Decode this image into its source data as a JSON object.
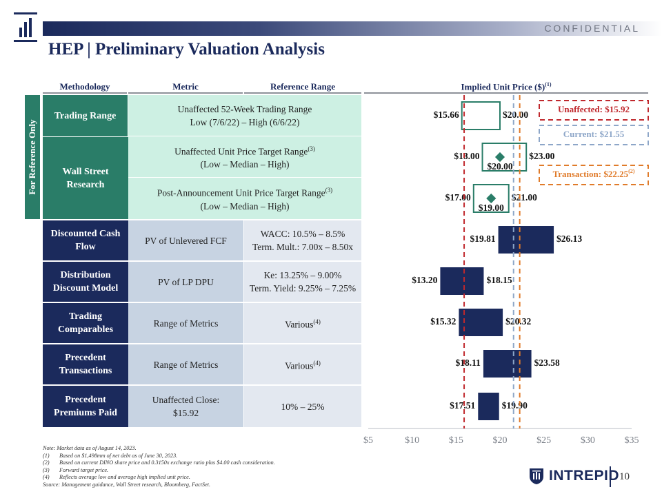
{
  "header": {
    "confidential": "CONFIDENTIAL",
    "title": "HEP | Preliminary Valuation Analysis",
    "page_number": "10"
  },
  "columns": {
    "methodology": "Methodology",
    "metric": "Metric",
    "reference_range": "Reference Range",
    "implied_price": "Implied Unit Price ($)",
    "implied_price_sup": "(1)"
  },
  "side_label": "For Reference Only",
  "rows": [
    {
      "methodology": "Trading Range",
      "metric_line1": "Unaffected 52-Week Trading Range",
      "metric_line2": "Low (7/6/22) – High (6/6/22)"
    },
    {
      "methodology": "Wall Street Research",
      "metric_line1": "Unaffected Unit Price Target Range",
      "metric_sup": "(3)",
      "metric_line2": "(Low – Median – High)"
    },
    {
      "metric_line1": "Post-Announcement Unit Price Target Range",
      "metric_sup": "(3)",
      "metric_line2": "(Low – Median – High)"
    },
    {
      "methodology": "Discounted Cash Flow",
      "metric": "PV of Unlevered FCF",
      "ref_line1": "WACC: 10.5% – 8.5%",
      "ref_line2": "Term. Mult.: 7.00x – 8.50x"
    },
    {
      "methodology": "Distribution Discount Model",
      "metric": "PV of LP DPU",
      "ref_line1": "Ke: 13.25% – 9.00%",
      "ref_line2": "Term. Yield: 9.25% – 7.25%"
    },
    {
      "methodology": "Trading Comparables",
      "metric": "Range of Metrics",
      "ref": "Various",
      "ref_sup": "(4)"
    },
    {
      "methodology": "Precedent Transactions",
      "metric": "Range of Metrics",
      "ref": "Various",
      "ref_sup": "(4)"
    },
    {
      "methodology": "Precedent Premiums Paid",
      "metric_line1": "Unaffected Close:",
      "metric_line2": "$15.92",
      "ref": "10% – 25%"
    }
  ],
  "legend": {
    "unaffected": "Unaffected: $15.92",
    "current": "Current: $21.55",
    "transaction": "Transaction: $22.25",
    "transaction_sup": "(2)"
  },
  "colors": {
    "navy": "#1b2a5c",
    "green": "#2a7d68",
    "unaffected_line": "#c0282d",
    "current_line": "#8da6c8",
    "transaction_line": "#e07b2a"
  },
  "chart_data": {
    "type": "bar",
    "orientation": "horizontal-floating",
    "x_ticks": [
      "$5",
      "$10",
      "$15",
      "$20",
      "$25",
      "$30",
      "$35"
    ],
    "xlim": [
      5,
      35
    ],
    "reference_lines": [
      {
        "name": "Unaffected",
        "value": 15.92
      },
      {
        "name": "Current",
        "value": 21.55
      },
      {
        "name": "Transaction",
        "value": 22.25
      }
    ],
    "bars": [
      {
        "low": 15.66,
        "high": 20.0,
        "low_label": "$15.66",
        "high_label": "$20.00",
        "style": "outline"
      },
      {
        "low": 18.0,
        "high": 23.0,
        "median": 20.0,
        "low_label": "$18.00",
        "high_label": "$23.00",
        "median_label": "$20.00",
        "style": "outline"
      },
      {
        "low": 17.0,
        "high": 21.0,
        "median": 19.0,
        "low_label": "$17.00",
        "high_label": "$21.00",
        "median_label": "$19.00",
        "style": "outline"
      },
      {
        "low": 19.81,
        "high": 26.13,
        "low_label": "$19.81",
        "high_label": "$26.13",
        "style": "solid"
      },
      {
        "low": 13.2,
        "high": 18.15,
        "low_label": "$13.20",
        "high_label": "$18.15",
        "style": "solid"
      },
      {
        "low": 15.32,
        "high": 20.32,
        "low_label": "$15.32",
        "high_label": "$20.32",
        "style": "solid"
      },
      {
        "low": 18.11,
        "high": 23.58,
        "low_label": "$18.11",
        "high_label": "$23.58",
        "style": "solid"
      },
      {
        "low": 17.51,
        "high": 19.9,
        "low_label": "$17.51",
        "high_label": "$19.90",
        "style": "solid"
      }
    ]
  },
  "notes": {
    "intro": "Note: Market data as of August 14, 2023.",
    "items": [
      {
        "num": "(1)",
        "text": "Based on $1,498mm of net debt as of June 30, 2023."
      },
      {
        "num": "(2)",
        "text": "Based on current DINO share price and 0.3150x exchange ratio plus $4.00 cash consideration."
      },
      {
        "num": "(3)",
        "text": "Forward target price."
      },
      {
        "num": "(4)",
        "text": "Reflects average low and average high implied unit price."
      }
    ],
    "source": "Source: Management guidance, Wall Street research, Bloomberg, FactSet."
  },
  "brand": {
    "name": "INTREPID"
  }
}
